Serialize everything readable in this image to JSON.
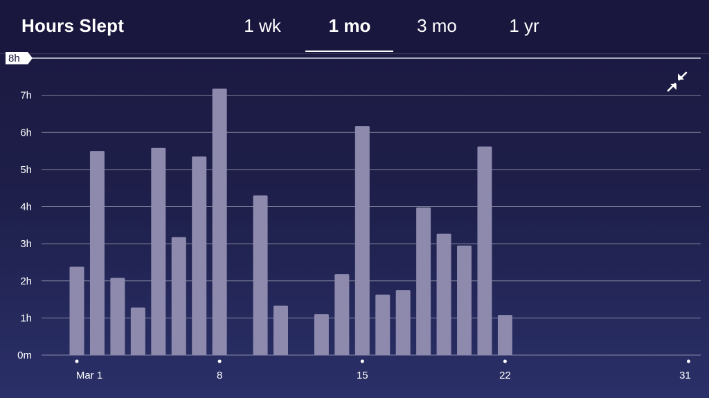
{
  "header": {
    "title": "Hours Slept",
    "tabs": [
      {
        "label": "1 wk",
        "active": false
      },
      {
        "label": "1 mo",
        "active": true
      },
      {
        "label": "3 mo",
        "active": false
      },
      {
        "label": "1 yr",
        "active": false
      }
    ]
  },
  "icons": {
    "collapse": "collapse-arrows-icon"
  },
  "colors": {
    "background_top": "#1a1840",
    "background_bottom": "#2a3068",
    "bar": "#8e8aae",
    "accent": "#ffffff"
  },
  "chart_data": {
    "type": "bar",
    "title": "Hours Slept",
    "ylabel": "",
    "xlabel": "",
    "ylim": [
      0,
      8
    ],
    "y_ticks": [
      "0m",
      "1h",
      "2h",
      "3h",
      "4h",
      "5h",
      "6h",
      "7h",
      "8h"
    ],
    "x_tick_labels": [
      {
        "day": 1,
        "label": "Mar 1"
      },
      {
        "day": 8,
        "label": "8"
      },
      {
        "day": 15,
        "label": "15"
      },
      {
        "day": 22,
        "label": "22"
      },
      {
        "day": 31,
        "label": "31"
      }
    ],
    "days": [
      1,
      2,
      3,
      4,
      5,
      6,
      7,
      8,
      9,
      10,
      11,
      12,
      13,
      14,
      15,
      16,
      17,
      18,
      19,
      20,
      21,
      22,
      23,
      24,
      25,
      26,
      27,
      28,
      29,
      30,
      31
    ],
    "values": [
      2.38,
      5.5,
      2.08,
      1.28,
      5.58,
      3.18,
      5.35,
      7.18,
      0,
      4.3,
      1.33,
      0,
      1.1,
      2.18,
      6.17,
      1.63,
      1.75,
      3.98,
      3.27,
      2.95,
      5.62,
      1.08,
      0,
      0,
      0,
      0,
      0,
      0,
      0,
      0,
      0
    ],
    "grid": true
  }
}
